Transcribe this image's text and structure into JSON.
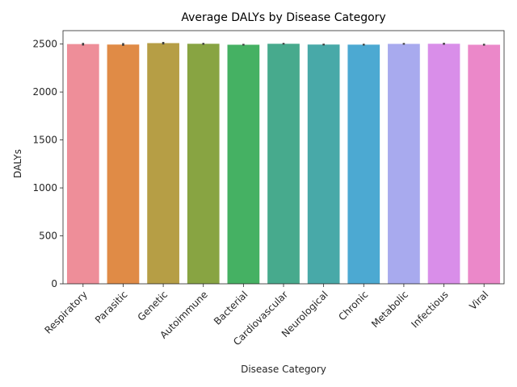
{
  "chart_data": {
    "type": "bar",
    "title": "Average DALYs by Disease Category",
    "xlabel": "Disease Category",
    "ylabel": "DALYs",
    "categories": [
      "Respiratory",
      "Parasitic",
      "Genetic",
      "Autoimmune",
      "Bacterial",
      "Cardiovascular",
      "Neurological",
      "Chronic",
      "Metabolic",
      "Infectious",
      "Viral"
    ],
    "values": [
      2500,
      2495,
      2510,
      2503,
      2493,
      2503,
      2495,
      2494,
      2502,
      2503,
      2493
    ],
    "error_low": [
      2485,
      2482,
      2496,
      2493,
      2485,
      2495,
      2486,
      2485,
      2494,
      2493,
      2484
    ],
    "error_high": [
      2512,
      2510,
      2522,
      2512,
      2502,
      2512,
      2504,
      2503,
      2511,
      2513,
      2503
    ],
    "colors": [
      "#ee8e99",
      "#e08b46",
      "#b69e45",
      "#88a442",
      "#45b163",
      "#47aa8d",
      "#48a9a8",
      "#4ca9d2",
      "#a8aaee",
      "#d98ee9",
      "#eb88c9"
    ],
    "yticks": [
      0,
      500,
      1000,
      1500,
      2000,
      2500
    ],
    "ylim": [
      0,
      2640
    ],
    "grid": false,
    "legend": "none"
  }
}
